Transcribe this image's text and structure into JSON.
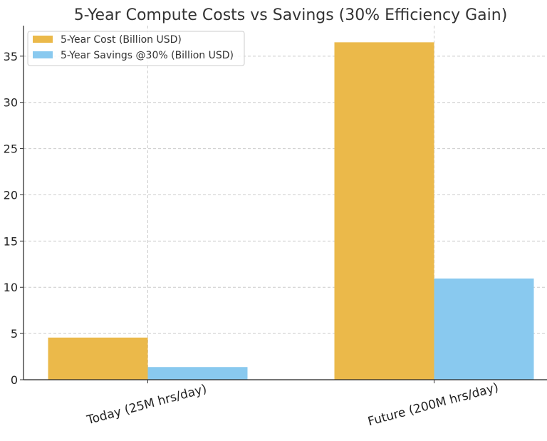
{
  "chart_data": {
    "type": "bar",
    "title": "5-Year Compute Costs vs Savings (30% Efficiency Gain)",
    "xlabel": "",
    "ylabel": "",
    "categories": [
      "Today (25M hrs/day)",
      "Future (200M hrs/day)"
    ],
    "series": [
      {
        "name": "5-Year Cost (Billion USD)",
        "values": [
          4.56,
          36.5
        ],
        "color": "#EBB94A"
      },
      {
        "name": "5-Year Savings @30% (Billion USD)",
        "values": [
          1.37,
          10.95
        ],
        "color": "#89C9EF"
      }
    ],
    "ylim": [
      0,
      38.3
    ],
    "yticks": [
      0,
      5,
      10,
      15,
      20,
      25,
      30,
      35
    ],
    "grid": true,
    "legend_position": "top-left"
  }
}
